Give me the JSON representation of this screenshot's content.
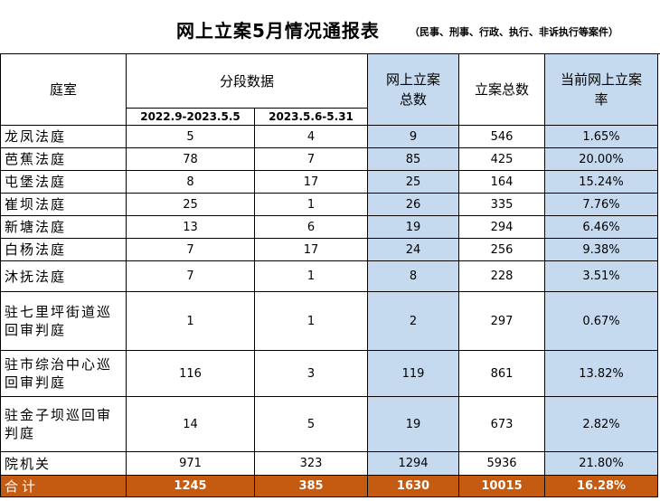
{
  "title": "网上立案5月情况通报表",
  "subtitle": "（民事、刑事、行政、执行、非诉执行等案件）",
  "headers": {
    "court": "庭室",
    "segments": "分段数据",
    "period1": "2022.9-2023.5.5",
    "period2": "2023.5.6-5.31",
    "online_total": "网上立案总数",
    "total_cases": "立案总数",
    "rate": "当前网上立案率"
  },
  "rows": [
    {
      "name": "龙凤法庭",
      "p1": "5",
      "p2": "4",
      "online": "9",
      "total": "546",
      "rate": "1.65%"
    },
    {
      "name": "芭蕉法庭",
      "p1": "78",
      "p2": "7",
      "online": "85",
      "total": "425",
      "rate": "20.00%"
    },
    {
      "name": "屯堡法庭",
      "p1": "8",
      "p2": "17",
      "online": "25",
      "total": "164",
      "rate": "15.24%"
    },
    {
      "name": "崔坝法庭",
      "p1": "25",
      "p2": "1",
      "online": "26",
      "total": "335",
      "rate": "7.76%"
    },
    {
      "name": "新塘法庭",
      "p1": "13",
      "p2": "6",
      "online": "19",
      "total": "294",
      "rate": "6.46%"
    },
    {
      "name": "白杨法庭",
      "p1": "7",
      "p2": "17",
      "online": "24",
      "total": "256",
      "rate": "9.38%"
    },
    {
      "name": "沐抚法庭",
      "p1": "7",
      "p2": "1",
      "online": "8",
      "total": "228",
      "rate": "3.51%"
    },
    {
      "name": "驻七里坪街道巡回审判庭",
      "p1": "1",
      "p2": "1",
      "online": "2",
      "total": "297",
      "rate": "0.67%"
    },
    {
      "name": "驻市综治中心巡回审判庭",
      "p1": "116",
      "p2": "3",
      "online": "119",
      "total": "861",
      "rate": "13.82%"
    },
    {
      "name": "驻金子坝巡回审判庭",
      "p1": "14",
      "p2": "5",
      "online": "19",
      "total": "673",
      "rate": "2.82%"
    },
    {
      "name": "院机关",
      "p1": "971",
      "p2": "323",
      "online": "1294",
      "total": "5936",
      "rate": "21.80%"
    }
  ],
  "total": {
    "name": "合计",
    "p1": "1245",
    "p2": "385",
    "online": "1630",
    "total": "10015",
    "rate": "16.28%"
  },
  "colors": {
    "highlight": "#c5d9ef",
    "total_row": "#c55a11"
  }
}
